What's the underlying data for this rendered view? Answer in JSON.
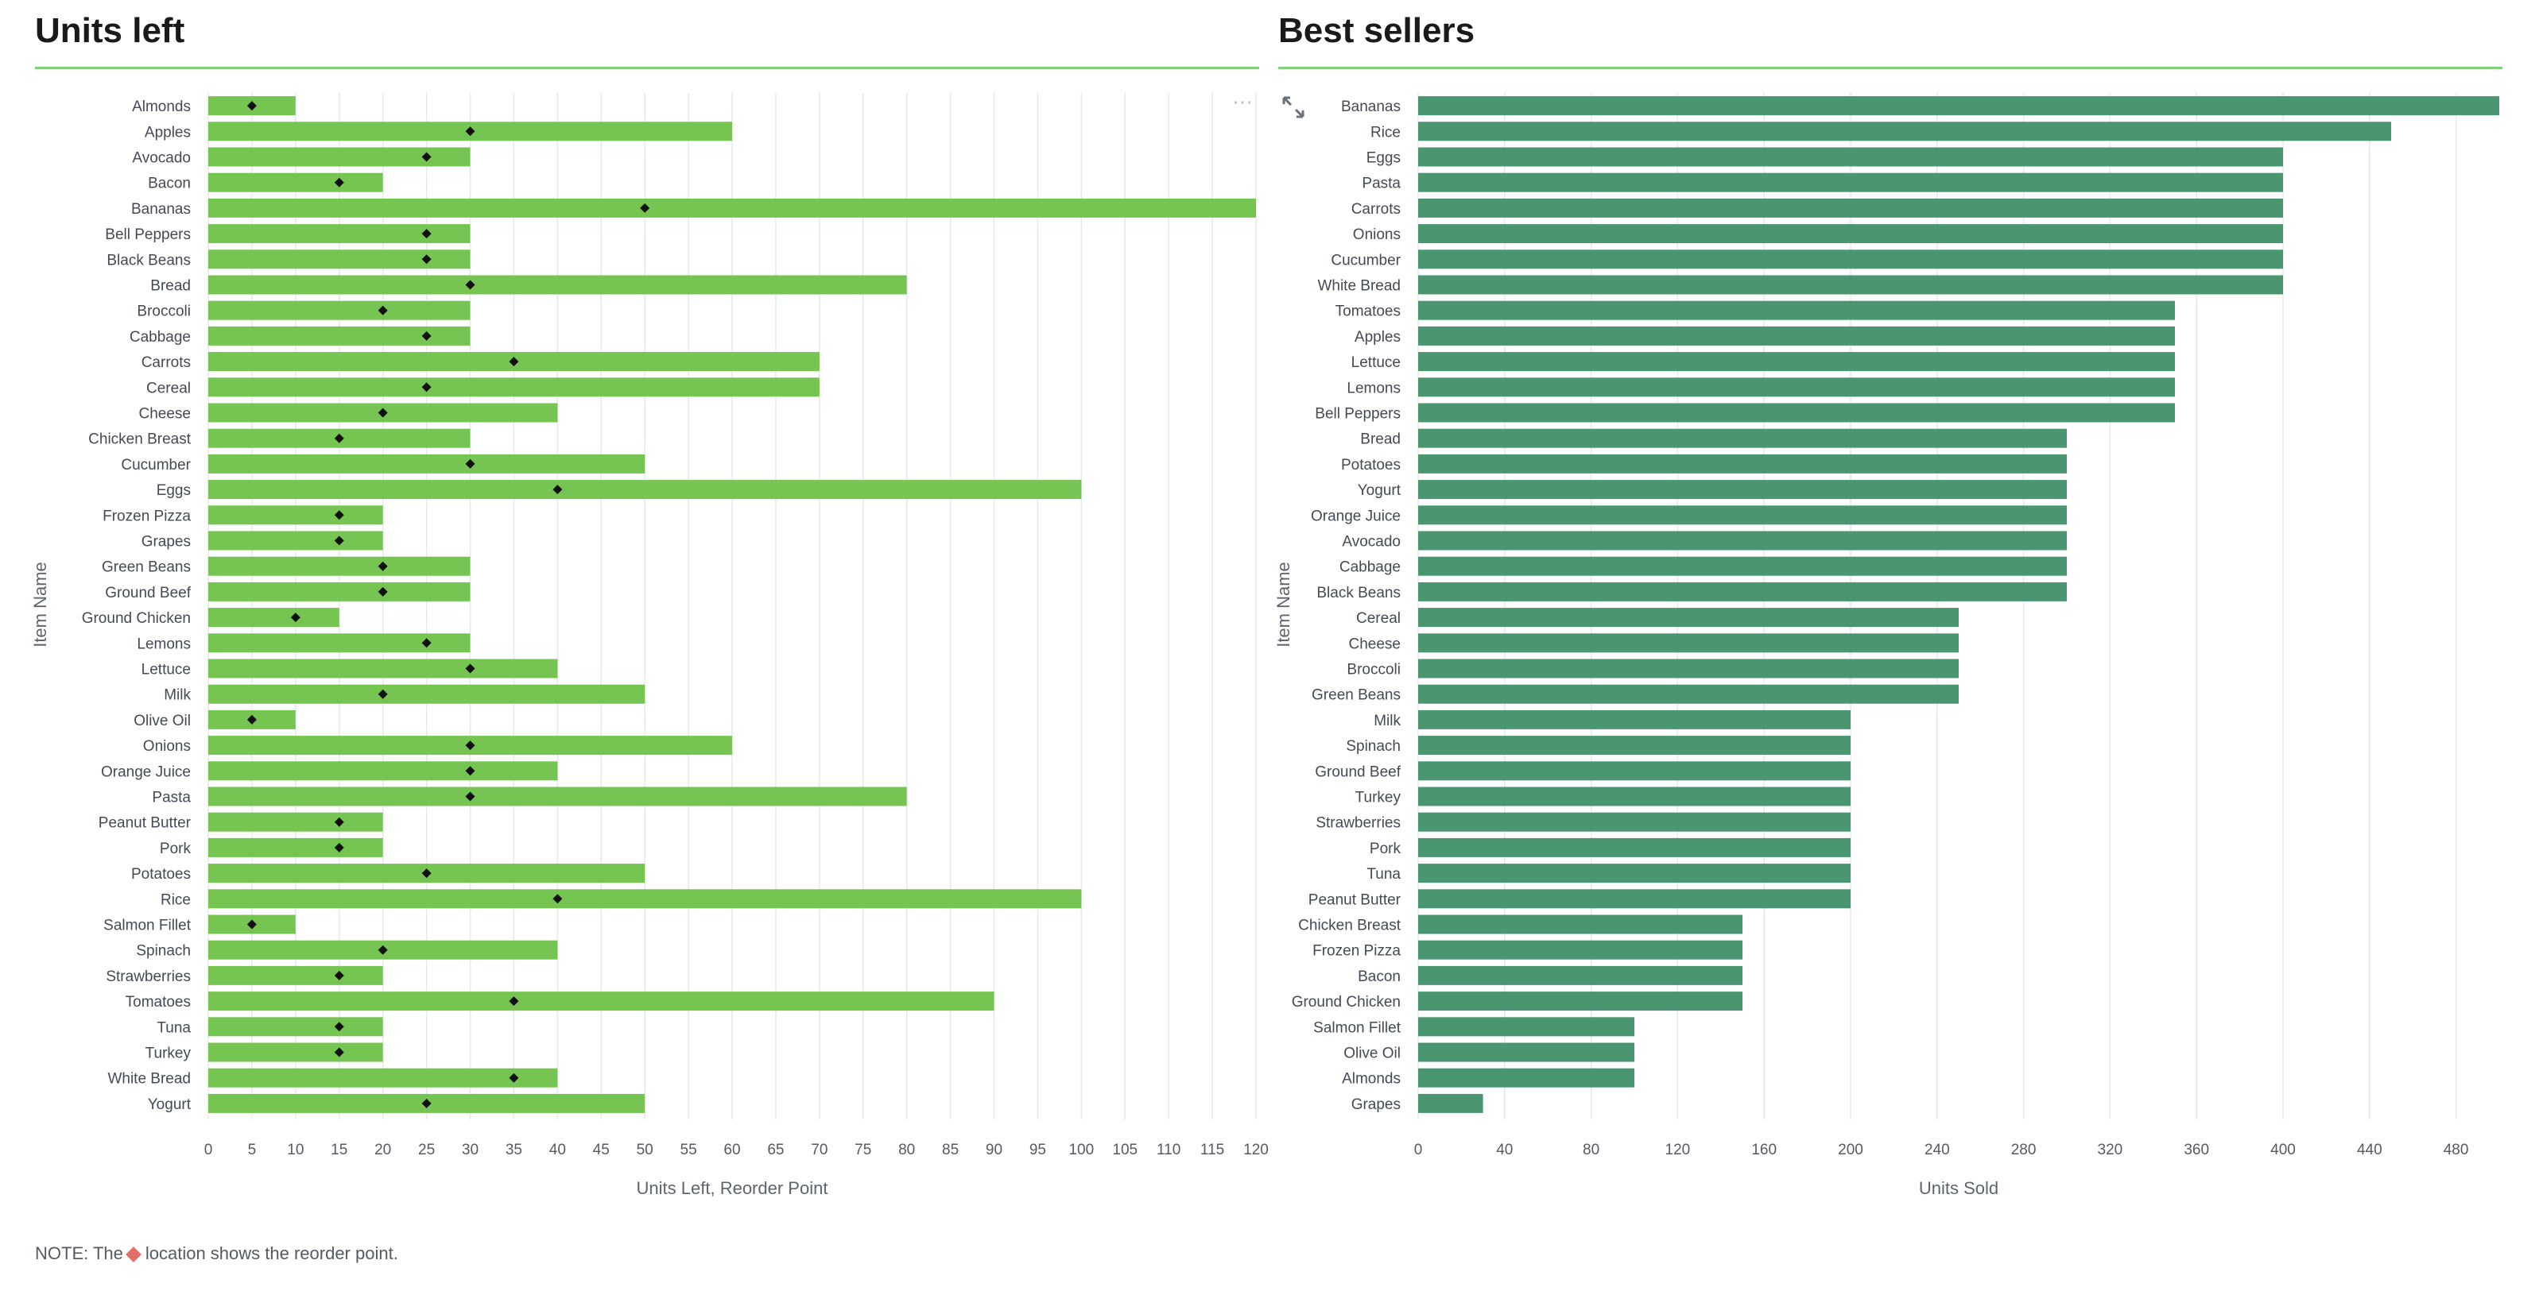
{
  "left_panel": {
    "title": "Units left",
    "more_icon": "more-horizontal-icon"
  },
  "right_panel": {
    "title": "Best sellers",
    "expand_icon": "expand-icon"
  },
  "note": {
    "prefix": "NOTE: The",
    "suffix": "location shows the reorder point.",
    "marker_color": "#e06f6a"
  },
  "colors": {
    "units_bar": "#76c451",
    "sold_bar": "#4a9670",
    "marker": "#111111",
    "rule": "#7ed37a"
  },
  "chart_data": [
    {
      "type": "bar",
      "orientation": "horizontal",
      "title": "Units left",
      "xlabel": "Units Left, Reorder Point",
      "ylabel": "Item Name",
      "xlim": [
        0,
        120
      ],
      "xticks": [
        0,
        5,
        10,
        15,
        20,
        25,
        30,
        35,
        40,
        45,
        50,
        55,
        60,
        65,
        70,
        75,
        80,
        85,
        90,
        95,
        100,
        105,
        110,
        115,
        120
      ],
      "grid": true,
      "categories": [
        "Almonds",
        "Apples",
        "Avocado",
        "Bacon",
        "Bananas",
        "Bell Peppers",
        "Black Beans",
        "Bread",
        "Broccoli",
        "Cabbage",
        "Carrots",
        "Cereal",
        "Cheese",
        "Chicken Breast",
        "Cucumber",
        "Eggs",
        "Frozen Pizza",
        "Grapes",
        "Green Beans",
        "Ground Beef",
        "Ground Chicken",
        "Lemons",
        "Lettuce",
        "Milk",
        "Olive Oil",
        "Onions",
        "Orange Juice",
        "Pasta",
        "Peanut Butter",
        "Pork",
        "Potatoes",
        "Rice",
        "Salmon Fillet",
        "Spinach",
        "Strawberries",
        "Tomatoes",
        "Tuna",
        "Turkey",
        "White Bread",
        "Yogurt"
      ],
      "series": [
        {
          "values": [
            10,
            60,
            30,
            20,
            120,
            30,
            30,
            80,
            30,
            30,
            70,
            70,
            40,
            30,
            50,
            100,
            20,
            20,
            30,
            30,
            15,
            30,
            40,
            50,
            10,
            60,
            40,
            80,
            20,
            20,
            50,
            100,
            10,
            40,
            20,
            90,
            20,
            20,
            40,
            50
          ]
        },
        {
          "values": [
            5,
            30,
            25,
            15,
            50,
            25,
            25,
            30,
            20,
            25,
            35,
            25,
            20,
            15,
            30,
            40,
            15,
            15,
            20,
            20,
            10,
            25,
            30,
            20,
            5,
            30,
            30,
            30,
            15,
            15,
            25,
            40,
            5,
            20,
            15,
            35,
            15,
            15,
            35,
            25
          ],
          "marker": "diamond"
        }
      ]
    },
    {
      "type": "bar",
      "orientation": "horizontal",
      "title": "Best sellers",
      "xlabel": "Units Sold",
      "ylabel": "Item Name",
      "xlim": [
        0,
        500
      ],
      "xticks": [
        0,
        40,
        80,
        120,
        160,
        200,
        240,
        280,
        320,
        360,
        400,
        440,
        480
      ],
      "grid": true,
      "categories": [
        "Bananas",
        "Rice",
        "Eggs",
        "Pasta",
        "Carrots",
        "Onions",
        "Cucumber",
        "White Bread",
        "Tomatoes",
        "Apples",
        "Lettuce",
        "Lemons",
        "Bell Peppers",
        "Bread",
        "Potatoes",
        "Yogurt",
        "Orange Juice",
        "Avocado",
        "Cabbage",
        "Black Beans",
        "Cereal",
        "Cheese",
        "Broccoli",
        "Green Beans",
        "Milk",
        "Spinach",
        "Ground Beef",
        "Turkey",
        "Strawberries",
        "Pork",
        "Tuna",
        "Peanut Butter",
        "Chicken Breast",
        "Frozen Pizza",
        "Bacon",
        "Ground Chicken",
        "Salmon Fillet",
        "Olive Oil",
        "Almonds",
        "Grapes"
      ],
      "values": [
        500,
        450,
        400,
        400,
        400,
        400,
        400,
        400,
        350,
        350,
        350,
        350,
        350,
        300,
        300,
        300,
        300,
        300,
        300,
        300,
        250,
        250,
        250,
        250,
        200,
        200,
        200,
        200,
        200,
        200,
        200,
        200,
        150,
        150,
        150,
        150,
        100,
        100,
        100,
        30
      ]
    }
  ]
}
